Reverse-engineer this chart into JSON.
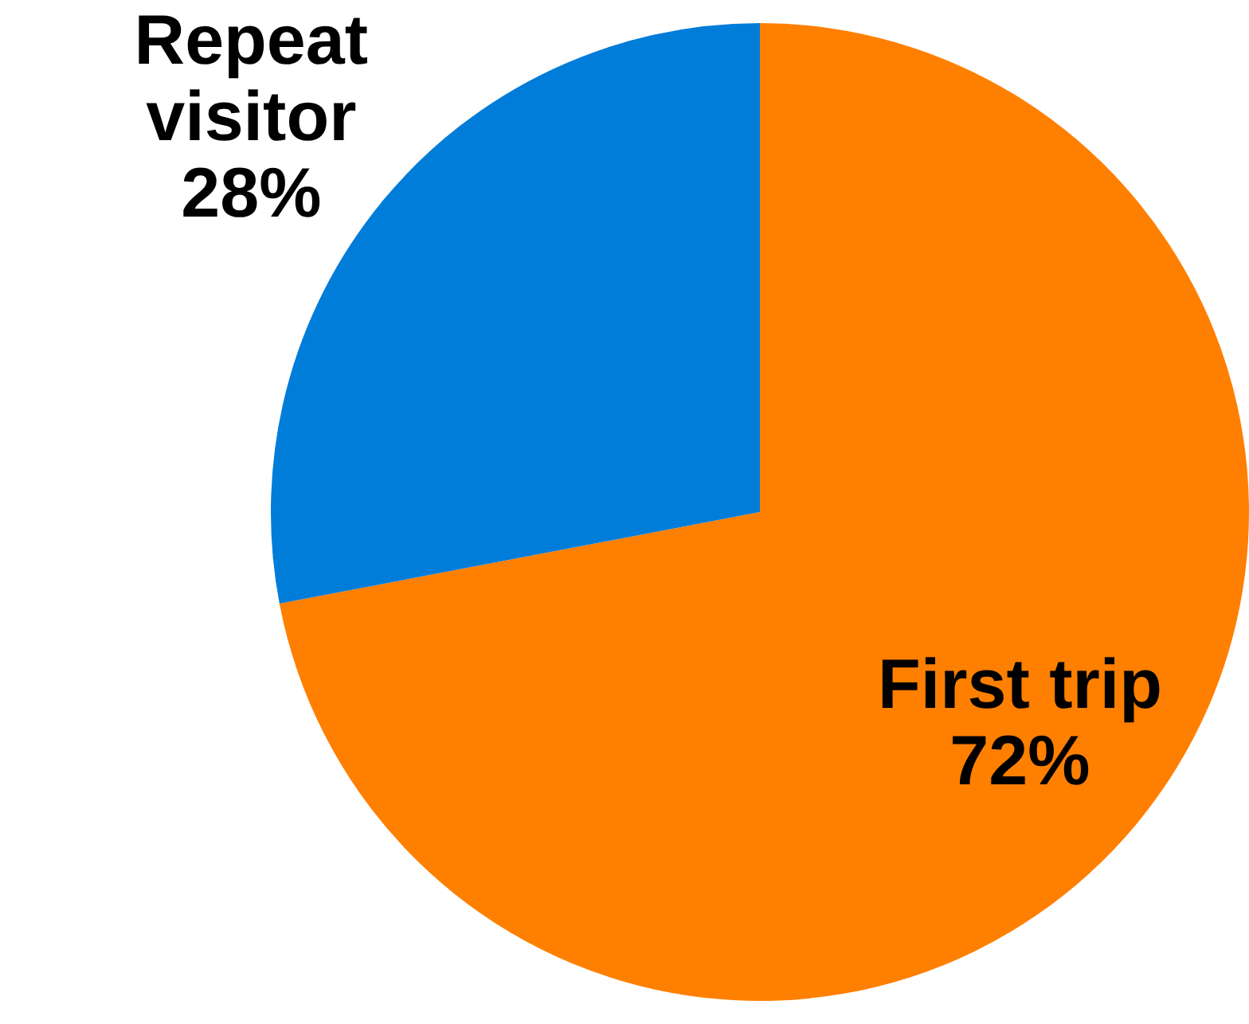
{
  "chart_data": {
    "type": "pie",
    "categories": [
      "First trip",
      "Repeat visitor"
    ],
    "values": [
      72,
      28
    ],
    "value_labels": [
      "72%",
      "28%"
    ],
    "colors": [
      "#ff7f00",
      "#007cd9"
    ],
    "legend": false
  }
}
